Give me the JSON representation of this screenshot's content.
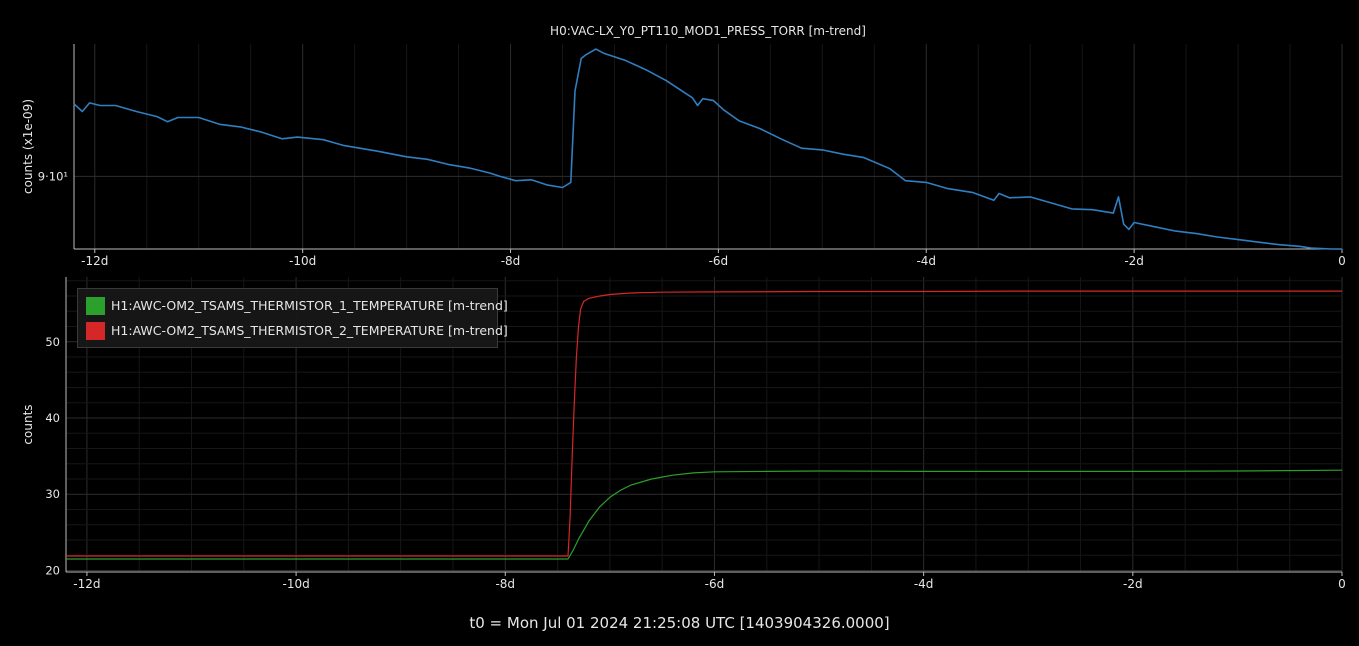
{
  "footer_text": "t0 = Mon Jul 01 2024 21:25:08 UTC [1403904326.0000]",
  "chart_data": [
    {
      "type": "line",
      "title": "H0:VAC-LX_Y0_PT110_MOD1_PRESS_TORR [m-trend]",
      "xlabel": "",
      "ylabel": "counts (x1e-09)",
      "x_tick_labels": [
        "-12d",
        "-10d",
        "-8d",
        "-6d",
        "-4d",
        "-2d",
        "0"
      ],
      "y_tick_labels": [
        "9·10¹"
      ],
      "y_ticks": [
        90
      ],
      "xlim": [
        -12.2,
        0
      ],
      "ylim": [
        81.5,
        105.5
      ],
      "grid": true,
      "series": [
        {
          "color": "#2f7fc1",
          "x": [
            -12.2,
            -12.12,
            -12.05,
            -11.95,
            -11.8,
            -11.6,
            -11.4,
            -11.3,
            -11.2,
            -11.0,
            -10.8,
            -10.6,
            -10.4,
            -10.2,
            -10.05,
            -9.8,
            -9.6,
            -9.3,
            -9.0,
            -8.8,
            -8.6,
            -8.4,
            -8.2,
            -8.1,
            -7.95,
            -7.8,
            -7.65,
            -7.5,
            -7.42,
            -7.38,
            -7.32,
            -7.28,
            -7.18,
            -7.1,
            -6.9,
            -6.7,
            -6.5,
            -6.25,
            -6.2,
            -6.15,
            -6.05,
            -5.95,
            -5.8,
            -5.6,
            -5.4,
            -5.2,
            -5.0,
            -4.8,
            -4.6,
            -4.35,
            -4.2,
            -4.0,
            -3.8,
            -3.55,
            -3.35,
            -3.3,
            -3.2,
            -3.0,
            -2.8,
            -2.6,
            -2.4,
            -2.2,
            -2.15,
            -2.1,
            -2.05,
            -2.0,
            -1.8,
            -1.6,
            -1.4,
            -1.2,
            -1.0,
            -0.8,
            -0.6,
            -0.4,
            -0.3,
            -0.1,
            0.0
          ],
          "y": [
            98.5,
            97.6,
            98.6,
            98.3,
            98.3,
            97.6,
            97.0,
            96.4,
            96.9,
            96.9,
            96.1,
            95.8,
            95.2,
            94.4,
            94.6,
            94.3,
            93.6,
            93.0,
            92.3,
            92.0,
            91.4,
            91.0,
            90.4,
            90.0,
            89.5,
            89.6,
            89.0,
            88.7,
            89.3,
            100.0,
            103.8,
            104.2,
            104.9,
            104.4,
            103.6,
            102.5,
            101.2,
            99.2,
            98.3,
            99.1,
            98.9,
            97.8,
            96.5,
            95.6,
            94.4,
            93.3,
            93.1,
            92.6,
            92.2,
            90.9,
            89.5,
            89.3,
            88.6,
            88.1,
            87.2,
            88.0,
            87.5,
            87.6,
            86.9,
            86.2,
            86.1,
            85.7,
            87.6,
            84.4,
            83.8,
            84.6,
            84.1,
            83.6,
            83.3,
            82.9,
            82.6,
            82.3,
            82.0,
            81.8,
            81.6,
            81.5,
            81.5
          ]
        }
      ]
    },
    {
      "type": "line",
      "title": "",
      "xlabel": "",
      "ylabel": "counts",
      "x_tick_labels": [
        "-12d",
        "-10d",
        "-8d",
        "-6d",
        "-4d",
        "-2d",
        "0"
      ],
      "y_tick_labels": [
        "20",
        "30",
        "40",
        "50"
      ],
      "y_ticks": [
        20,
        30,
        40,
        50
      ],
      "xlim": [
        -12.2,
        0
      ],
      "ylim": [
        19.8,
        58.5
      ],
      "grid": true,
      "legend_position": "top-left",
      "series": [
        {
          "name": "H1:AWC-OM2_TSAMS_THERMISTOR_1_TEMPERATURE [m-trend]",
          "color": "#2ca02c",
          "x": [
            -12.2,
            -7.4,
            -7.35,
            -7.3,
            -7.2,
            -7.1,
            -7.0,
            -6.9,
            -6.8,
            -6.6,
            -6.4,
            -6.2,
            -6.0,
            -5.5,
            -5.0,
            -4.0,
            -3.0,
            -2.0,
            -1.0,
            0.0
          ],
          "y": [
            21.5,
            21.5,
            22.7,
            24.1,
            26.5,
            28.3,
            29.6,
            30.5,
            31.2,
            32.0,
            32.5,
            32.8,
            32.95,
            33.0,
            33.05,
            33.0,
            33.0,
            33.0,
            33.05,
            33.15
          ]
        },
        {
          "name": "H1:AWC-OM2_TSAMS_THERMISTOR_2_TEMPERATURE [m-trend]",
          "color": "#d62728",
          "x": [
            -12.2,
            -7.4,
            -7.38,
            -7.36,
            -7.34,
            -7.32,
            -7.3,
            -7.28,
            -7.25,
            -7.2,
            -7.1,
            -7.0,
            -6.8,
            -6.5,
            -6.0,
            -5.0,
            -4.0,
            -3.0,
            -2.0,
            -1.0,
            0.0
          ],
          "y": [
            21.9,
            21.9,
            27.0,
            35.0,
            42.0,
            48.0,
            52.0,
            54.3,
            55.3,
            55.7,
            56.0,
            56.2,
            56.4,
            56.5,
            56.55,
            56.6,
            56.6,
            56.65,
            56.65,
            56.65,
            56.65
          ]
        }
      ]
    }
  ]
}
